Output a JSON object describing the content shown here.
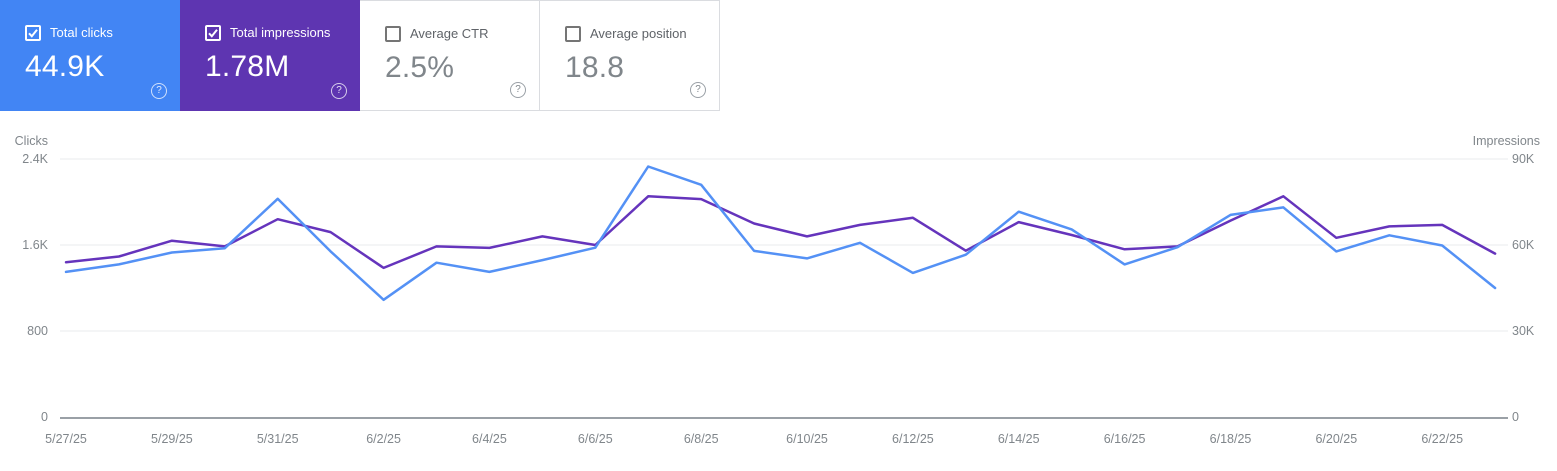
{
  "cards": [
    {
      "label": "Total clicks",
      "value": "44.9K",
      "selected": true,
      "color": "#4285f4"
    },
    {
      "label": "Total impressions",
      "value": "1.78M",
      "selected": true,
      "color": "#5e35b1"
    },
    {
      "label": "Average CTR",
      "value": "2.5%",
      "selected": false,
      "color": "#ffffff"
    },
    {
      "label": "Average position",
      "value": "18.8",
      "selected": false,
      "color": "#ffffff"
    }
  ],
  "icons": {
    "help": "?",
    "checkbox_checked": "checkmark",
    "checkbox_unchecked": "empty-box"
  },
  "chart_data": {
    "type": "line",
    "x": [
      "5/27/25",
      "5/28/25",
      "5/29/25",
      "5/30/25",
      "5/31/25",
      "6/1/25",
      "6/2/25",
      "6/3/25",
      "6/4/25",
      "6/5/25",
      "6/6/25",
      "6/7/25",
      "6/8/25",
      "6/9/25",
      "6/10/25",
      "6/11/25",
      "6/12/25",
      "6/13/25",
      "6/14/25",
      "6/15/25",
      "6/16/25",
      "6/17/25",
      "6/18/25",
      "6/19/25",
      "6/20/25",
      "6/21/25",
      "6/22/25",
      "6/23/25"
    ],
    "x_tick_labels": [
      "5/27/25",
      "5/29/25",
      "5/31/25",
      "6/2/25",
      "6/4/25",
      "6/6/25",
      "6/8/25",
      "6/10/25",
      "6/12/25",
      "6/14/25",
      "6/16/25",
      "6/18/25",
      "6/20/25",
      "6/22/25"
    ],
    "series": [
      {
        "name": "Clicks",
        "axis": "left",
        "color": "#5491f5",
        "values": [
          1350,
          1420,
          1530,
          1570,
          2030,
          1540,
          1090,
          1435,
          1350,
          1460,
          1575,
          2330,
          2160,
          1545,
          1475,
          1620,
          1340,
          1510,
          1910,
          1745,
          1420,
          1580,
          1880,
          1950,
          1540,
          1690,
          1595,
          1200
        ]
      },
      {
        "name": "Impressions",
        "axis": "right",
        "color": "#6534bc",
        "values": [
          54000,
          56000,
          61500,
          59500,
          69000,
          64500,
          52000,
          59500,
          59000,
          63000,
          60000,
          77000,
          76000,
          67500,
          63000,
          67000,
          69500,
          58000,
          68000,
          63500,
          58500,
          59500,
          68500,
          77000,
          62500,
          66500,
          67000,
          57000
        ]
      }
    ],
    "left_axis": {
      "title": "Clicks",
      "ticks": [
        "2.4K",
        "1.6K",
        "800",
        "0"
      ],
      "min": 0,
      "max": 2400
    },
    "right_axis": {
      "title": "Impressions",
      "ticks": [
        "90K",
        "60K",
        "30K",
        "0"
      ],
      "min": 0,
      "max": 90000
    },
    "grid": true,
    "legend": "none"
  }
}
